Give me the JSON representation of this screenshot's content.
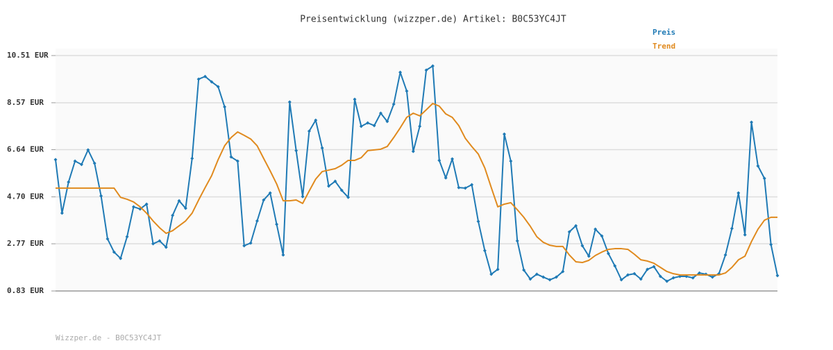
{
  "chart_data": {
    "type": "line",
    "title": "Preisentwicklung (wizzper.de) Artikel: B0C53YC4JT",
    "footer": "Wizzper.de - B0C53YC4JT",
    "legend": "top-right",
    "grid": true,
    "ylim": [
      0.83,
      10.51
    ],
    "yticks": [
      {
        "value": 0.83,
        "label": "0.83 EUR"
      },
      {
        "value": 2.77,
        "label": "2.77 EUR"
      },
      {
        "value": 4.7,
        "label": "4.70 EUR"
      },
      {
        "value": 6.64,
        "label": "6.64 EUR"
      },
      {
        "value": 8.57,
        "label": "8.57 EUR"
      },
      {
        "value": 10.51,
        "label": "10.51 EUR"
      }
    ],
    "series": [
      {
        "name": "Preis",
        "color": "#1f7ab5",
        "markers": true,
        "values": [
          6.23,
          4.03,
          5.31,
          6.17,
          6.03,
          6.63,
          6.08,
          4.74,
          2.97,
          2.43,
          2.17,
          3.06,
          4.29,
          4.2,
          4.4,
          2.77,
          2.89,
          2.63,
          3.94,
          4.54,
          4.23,
          6.28,
          9.54,
          9.65,
          9.43,
          9.23,
          8.4,
          6.34,
          6.17,
          2.69,
          2.8,
          3.71,
          4.57,
          4.86,
          3.57,
          2.31,
          8.6,
          6.6,
          4.71,
          7.4,
          7.85,
          6.71,
          5.14,
          5.34,
          4.97,
          4.68,
          8.71,
          7.6,
          7.74,
          7.63,
          8.14,
          7.8,
          8.51,
          9.82,
          9.05,
          6.57,
          7.6,
          9.91,
          10.08,
          6.2,
          5.48,
          6.26,
          5.08,
          5.06,
          5.2,
          3.69,
          2.49,
          1.52,
          1.72,
          7.28,
          6.17,
          2.89,
          1.69,
          1.32,
          1.52,
          1.4,
          1.29,
          1.4,
          1.63,
          3.26,
          3.51,
          2.69,
          2.26,
          3.37,
          3.09,
          2.37,
          1.86,
          1.29,
          1.49,
          1.54,
          1.32,
          1.72,
          1.83,
          1.43,
          1.23,
          1.37,
          1.43,
          1.43,
          1.37,
          1.57,
          1.52,
          1.4,
          1.54,
          2.31,
          3.4,
          4.86,
          3.14,
          7.77,
          5.97,
          5.46,
          2.74,
          1.46
        ]
      },
      {
        "name": "Trend",
        "color": "#e08a1e",
        "markers": false,
        "values": [
          5.06,
          5.06,
          5.06,
          5.06,
          5.06,
          5.06,
          5.06,
          5.06,
          5.06,
          5.06,
          4.68,
          4.6,
          4.49,
          4.29,
          4.03,
          3.71,
          3.43,
          3.2,
          3.31,
          3.51,
          3.71,
          4.03,
          4.57,
          5.08,
          5.57,
          6.23,
          6.8,
          7.14,
          7.37,
          7.23,
          7.08,
          6.8,
          6.28,
          5.77,
          5.23,
          4.54,
          4.54,
          4.57,
          4.43,
          4.94,
          5.43,
          5.74,
          5.8,
          5.86,
          6.0,
          6.2,
          6.2,
          6.31,
          6.6,
          6.63,
          6.66,
          6.77,
          7.14,
          7.54,
          7.97,
          8.14,
          8.03,
          8.28,
          8.54,
          8.43,
          8.11,
          7.97,
          7.63,
          7.11,
          6.77,
          6.46,
          5.89,
          5.08,
          4.29,
          4.4,
          4.46,
          4.17,
          3.86,
          3.49,
          3.06,
          2.83,
          2.71,
          2.66,
          2.66,
          2.31,
          2.03,
          2.0,
          2.09,
          2.29,
          2.43,
          2.54,
          2.57,
          2.57,
          2.54,
          2.34,
          2.11,
          2.06,
          1.97,
          1.8,
          1.63,
          1.54,
          1.49,
          1.49,
          1.49,
          1.49,
          1.49,
          1.49,
          1.49,
          1.57,
          1.8,
          2.11,
          2.26,
          2.86,
          3.37,
          3.74,
          3.86,
          3.86
        ]
      }
    ]
  }
}
